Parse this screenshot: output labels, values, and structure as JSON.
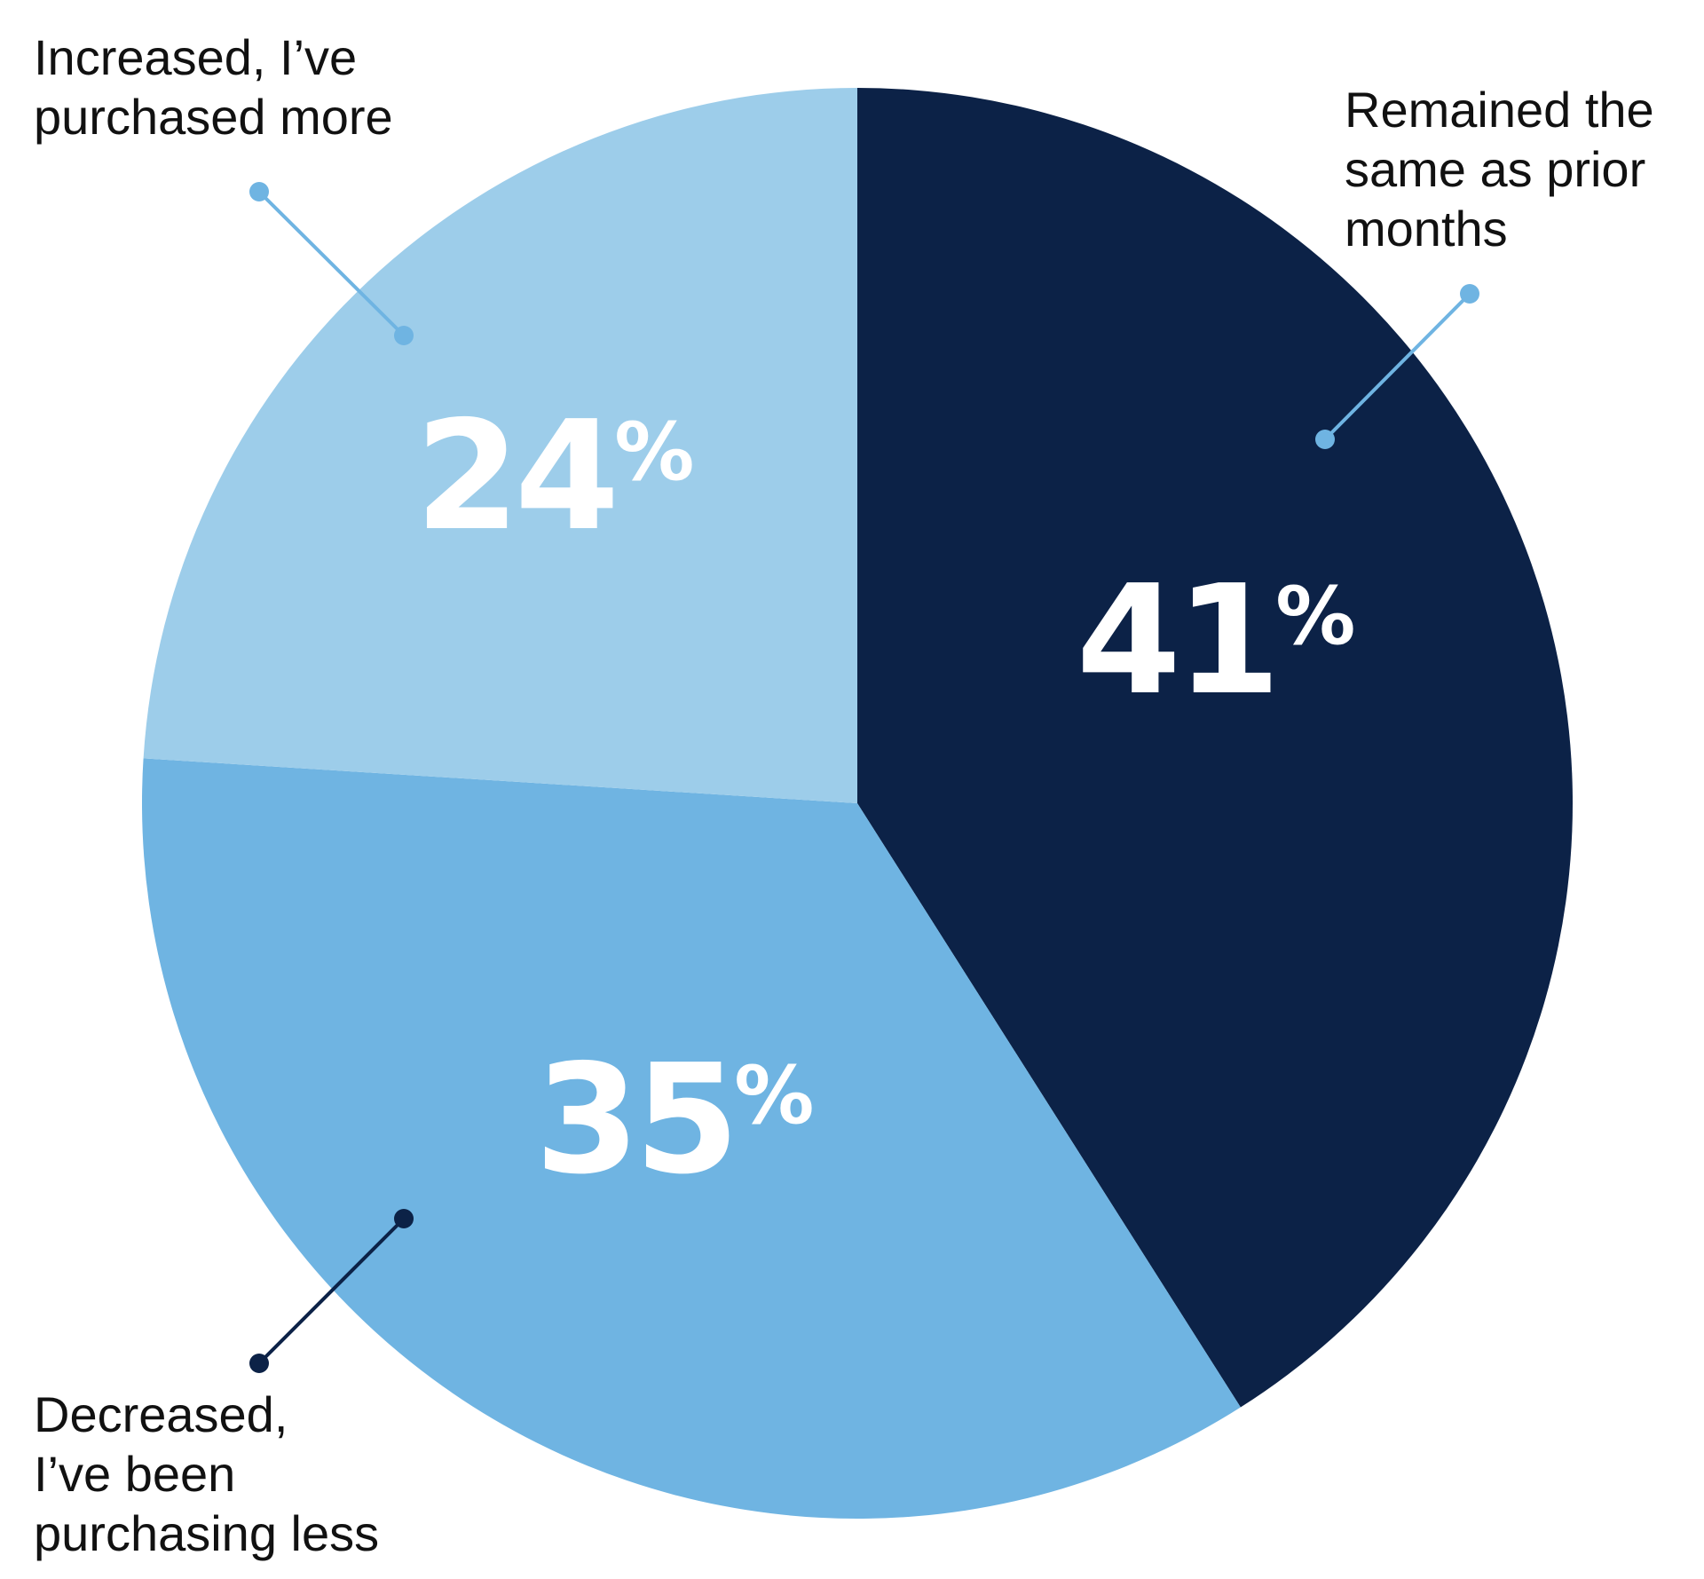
{
  "chart_data": {
    "type": "pie",
    "title": "",
    "categories": [
      "Remained the same as prior months",
      "Decreased, I’ve been purchasing less",
      "Increased, I’ve purchased more"
    ],
    "values": [
      41,
      35,
      24
    ],
    "unit": "%",
    "start_angle_deg": 0,
    "direction": "clockwise",
    "legend": "none",
    "slices": [
      {
        "value": 41,
        "value_label": "41",
        "label_lines": [
          "Remained the",
          "same as prior",
          "months"
        ],
        "color": "#0c2247",
        "leader_color": "#6fb4e2"
      },
      {
        "value": 35,
        "value_label": "35",
        "label_lines": [
          "Decreased,",
          "I’ve been",
          "purchasing less"
        ],
        "color": "#6fb4e2",
        "leader_color": "#0c2247"
      },
      {
        "value": 24,
        "value_label": "24",
        "label_lines": [
          "Increased, I’ve",
          "purchased more"
        ],
        "color": "#9dcdea",
        "leader_color": "#6fb4e2"
      }
    ]
  }
}
